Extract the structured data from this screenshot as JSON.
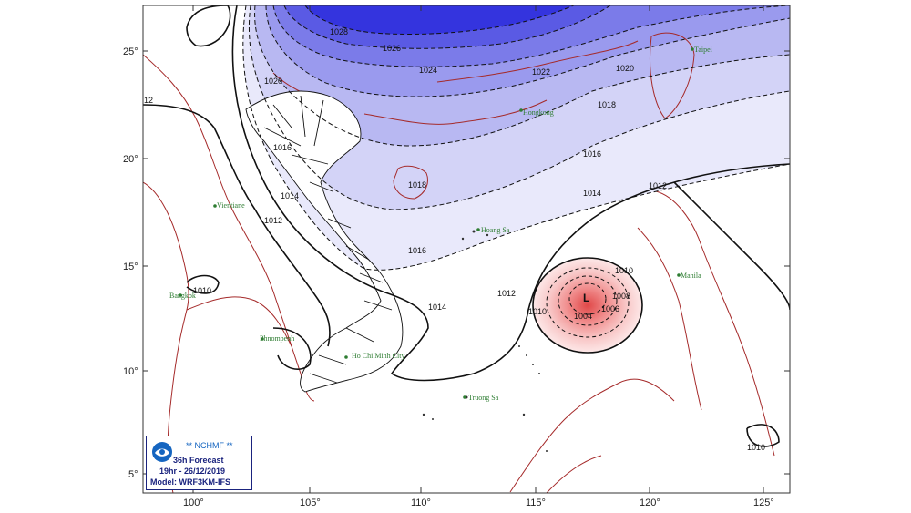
{
  "map": {
    "lat_labels": [
      "25°",
      "20°",
      "15°",
      "10°",
      "5°"
    ],
    "lon_labels": [
      "100°",
      "105°",
      "110°",
      "115°",
      "120°",
      "125°"
    ],
    "isobars": [
      "1028",
      "1026",
      "1024",
      "1022",
      "1020",
      "1020",
      "1018",
      "1018",
      "1016",
      "1016",
      "1016",
      "1014",
      "1014",
      "1014",
      "1012",
      "1012",
      "1012",
      "1010",
      "1010",
      "1010",
      "1010",
      "1008",
      "1006",
      "1004",
      "L",
      "12"
    ],
    "cities": [
      "Taipei",
      "Hongkong",
      "Vientiane",
      "Hoang Sa",
      "Manila",
      "Bangkok",
      "Phnompenh",
      "Ho Chi Minh City",
      "Truong Sa"
    ],
    "low_center_symbol": "L",
    "colors": {
      "high_dark": "#2a2ae0",
      "high_light": "#e8e8fb",
      "low_center": "#e05050",
      "land_border": "#a52a2a",
      "vietnam_border": "#111111",
      "city_label": "#2e7d32"
    }
  },
  "logo": {
    "org": "** NCHMF **",
    "forecast": "36h Forecast",
    "time": "19hr - 26/12/2019",
    "model": "Model: WRF3KM-IFS",
    "emblem": "nchmf-emblem"
  }
}
